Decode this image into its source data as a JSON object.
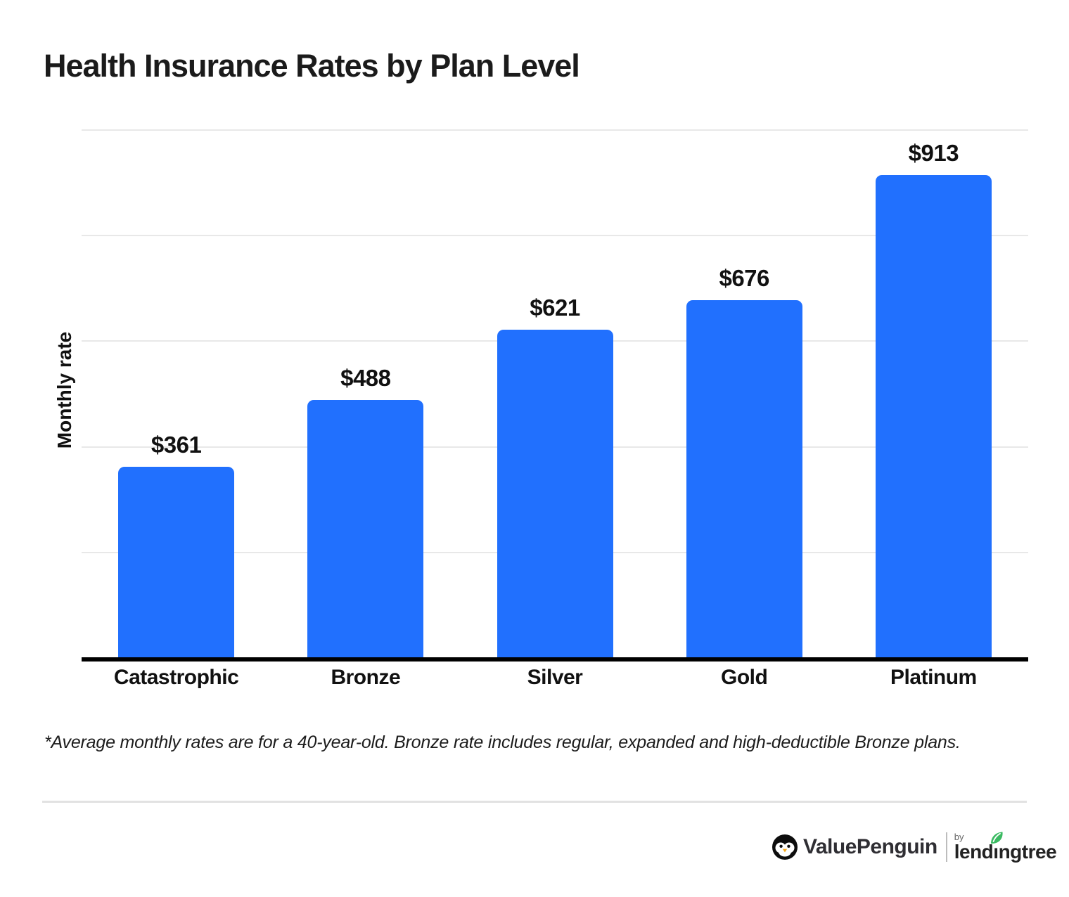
{
  "title": "Health Insurance Rates by Plan Level",
  "footnote": "*Average monthly rates are for a 40-year-old. Bronze rate includes regular, expanded and high-deductible Bronze plans.",
  "chart_data": {
    "type": "bar",
    "title": "Health Insurance Rates by Plan Level",
    "categories": [
      "Catastrophic",
      "Bronze",
      "Silver",
      "Gold",
      "Platinum"
    ],
    "values": [
      361,
      488,
      621,
      676,
      913
    ],
    "value_labels": [
      "$361",
      "$488",
      "$621",
      "$676",
      "$913"
    ],
    "xlabel": "",
    "ylabel": "Monthly rate",
    "ylim": [
      0,
      1000
    ],
    "gridline_values": [
      200,
      400,
      600,
      800,
      1000
    ],
    "grid": "horizontal-only, no y tick labels shown",
    "legend": "none",
    "bar_color": "#2170FE"
  },
  "colors": {
    "bar_blue": "#2170FE",
    "gridline": "#e8e8e8",
    "axis": "#000000",
    "text": "#111111",
    "divider": "#e2e2e2",
    "leaf_green": "#3BBA62",
    "beak_orange": "#F5A81C"
  },
  "logo": {
    "penguin_icon": "penguin-icon",
    "valuepenguin": "ValuePenguin",
    "by": "by",
    "lendingtree": "lendingtree",
    "lendingtree_pre": "lend",
    "lendingtree_i": "ı",
    "lendingtree_post": "ngtree",
    "leaf_icon": "leaf-icon"
  }
}
